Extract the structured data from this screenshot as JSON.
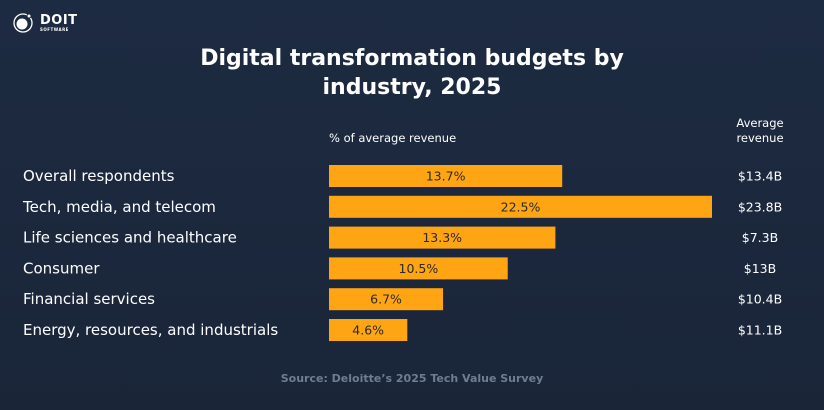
{
  "logo": {
    "name": "DOIT",
    "subtitle": "SOFTWARE"
  },
  "chart_data": {
    "type": "bar",
    "orientation": "horizontal",
    "title": "Digital transformation budgets by industry, 2025",
    "categories": [
      "Overall respondents",
      "Tech, media, and telecom",
      "Life sciences and healthcare",
      "Consumer",
      "Financial services",
      "Energy, resources, and industrials"
    ],
    "series": [
      {
        "name": "% of average revenue",
        "values": [
          13.7,
          22.5,
          13.3,
          10.5,
          6.7,
          4.6
        ]
      }
    ],
    "data_labels": [
      "13.7%",
      "22.5%",
      "13.3%",
      "10.5%",
      "6.7%",
      "4.6%"
    ],
    "average_revenue_header": "Average revenue",
    "average_revenue": [
      "$13.4B",
      "$23.8B",
      "$7.3B",
      "$13B",
      "$10.4B",
      "$11.1B"
    ],
    "bar_color": "#FFA514",
    "grid": false,
    "legend": "none"
  },
  "source": "Source: Deloitte’s 2025 Tech Value Survey"
}
